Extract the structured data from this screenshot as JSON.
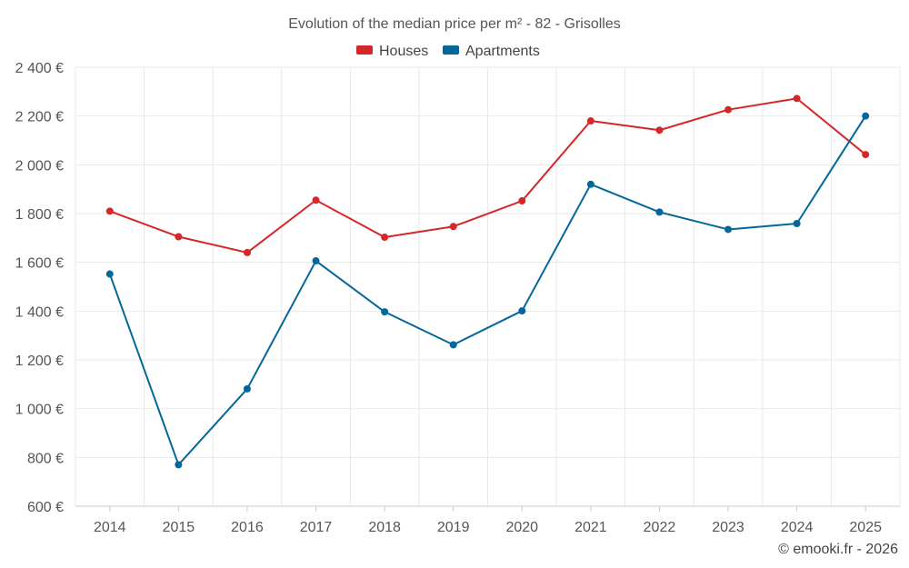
{
  "chart_data": {
    "type": "line",
    "title": "Evolution of the median price per m² - 82 - Grisolles",
    "categories": [
      "2014",
      "2015",
      "2016",
      "2017",
      "2018",
      "2019",
      "2020",
      "2021",
      "2022",
      "2023",
      "2024",
      "2025"
    ],
    "y_ticks": [
      600,
      800,
      1000,
      1200,
      1400,
      1600,
      1800,
      2000,
      2200,
      2400
    ],
    "y_tick_labels": [
      "600 €",
      "800 €",
      "1 000 €",
      "1 200 €",
      "1 400 €",
      "1 600 €",
      "1 800 €",
      "2 000 €",
      "2 200 €",
      "2 400 €"
    ],
    "ylim": [
      600,
      2400
    ],
    "grid": true,
    "legend_position": "top-center",
    "series": [
      {
        "name": "Houses",
        "color": "#d62728",
        "values": [
          1810,
          1705,
          1640,
          1855,
          1703,
          1747,
          1852,
          2180,
          2142,
          2226,
          2272,
          2042
        ]
      },
      {
        "name": "Apartments",
        "color": "#04679b",
        "values": [
          1552,
          770,
          1081,
          1606,
          1397,
          1262,
          1401,
          1920,
          1806,
          1735,
          1759,
          2200
        ]
      }
    ]
  },
  "credit": "© emooki.fr - 2026"
}
